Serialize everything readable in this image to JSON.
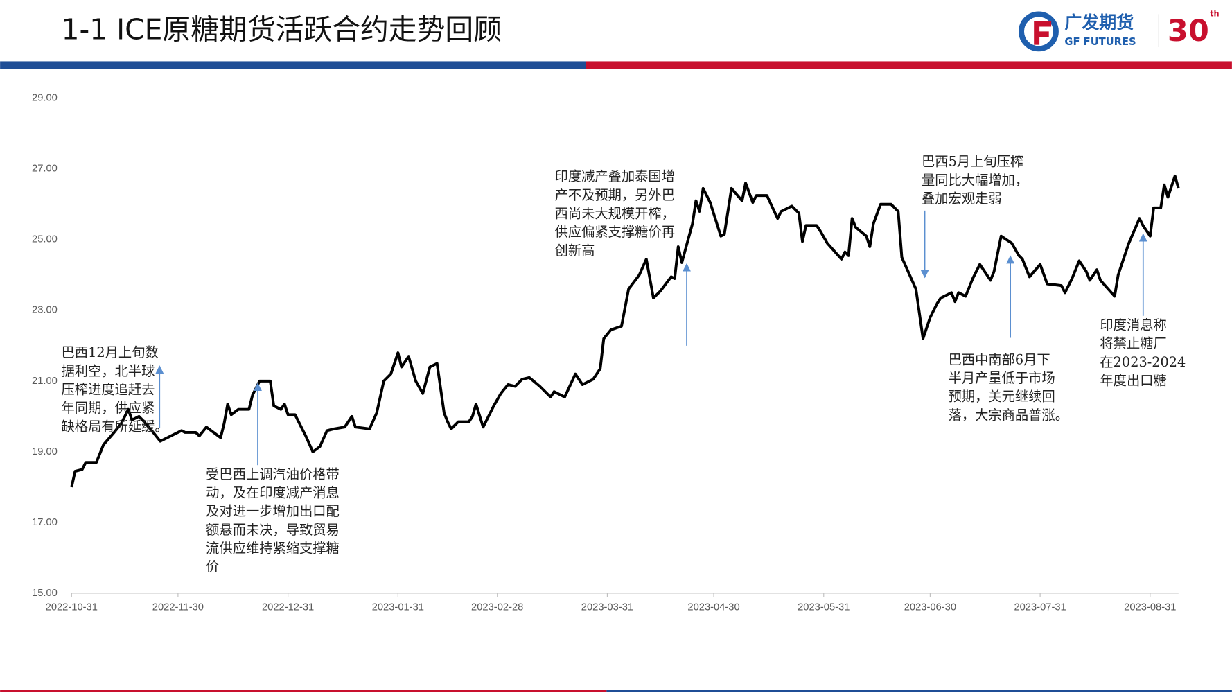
{
  "logo": {
    "name": "广发期货",
    "name_en": "GF FUTURES",
    "badge": "30",
    "badge_suffix": "th"
  },
  "chart_data": {
    "type": "line",
    "title": "1-1 ICE原糖期货活跃合约走势回顾",
    "color": "#000000",
    "x": [
      "2022-10-31",
      "2022-11-01",
      "2022-11-03",
      "2022-11-04",
      "2022-11-07",
      "2022-11-09",
      "2022-11-12",
      "2022-11-14",
      "2022-11-16",
      "2022-11-17",
      "2022-11-19",
      "2022-11-20",
      "2022-11-23",
      "2022-11-25",
      "2022-11-28",
      "2022-12-01",
      "2022-12-02",
      "2022-12-05",
      "2022-12-06",
      "2022-12-08",
      "2022-12-12",
      "2022-12-13",
      "2022-12-14",
      "2022-12-15",
      "2022-12-17",
      "2022-12-20",
      "2022-12-21",
      "2022-12-23",
      "2022-12-26",
      "2022-12-27",
      "2022-12-29",
      "2022-12-30",
      "2022-12-31",
      "2023-01-02",
      "2023-01-04",
      "2023-01-05",
      "2023-01-07",
      "2023-01-09",
      "2023-01-11",
      "2023-01-13",
      "2023-01-16",
      "2023-01-18",
      "2023-01-19",
      "2023-01-23",
      "2023-01-25",
      "2023-01-27",
      "2023-01-29",
      "2023-01-31",
      "2023-02-01",
      "2023-02-03",
      "2023-02-05",
      "2023-02-07",
      "2023-02-09",
      "2023-02-11",
      "2023-02-13",
      "2023-02-14",
      "2023-02-15",
      "2023-02-17",
      "2023-02-20",
      "2023-02-21",
      "2023-02-22",
      "2023-02-24",
      "2023-02-27",
      "2023-03-01",
      "2023-03-03",
      "2023-03-05",
      "2023-03-07",
      "2023-03-09",
      "2023-03-12",
      "2023-03-15",
      "2023-03-16",
      "2023-03-19",
      "2023-03-22",
      "2023-03-24",
      "2023-03-27",
      "2023-03-29",
      "2023-03-30",
      "2023-04-01",
      "2023-04-04",
      "2023-04-06",
      "2023-04-09",
      "2023-04-11",
      "2023-04-13",
      "2023-04-15",
      "2023-04-18",
      "2023-04-19",
      "2023-04-20",
      "2023-04-21",
      "2023-04-24",
      "2023-04-25",
      "2023-04-26",
      "2023-04-27",
      "2023-04-29",
      "2023-05-02",
      "2023-05-03",
      "2023-05-05",
      "2023-05-08",
      "2023-05-09",
      "2023-05-11",
      "2023-05-12",
      "2023-05-15",
      "2023-05-18",
      "2023-05-19",
      "2023-05-22",
      "2023-05-24",
      "2023-05-25",
      "2023-05-26",
      "2023-05-29",
      "2023-05-30",
      "2023-06-01",
      "2023-06-05",
      "2023-06-06",
      "2023-06-07",
      "2023-06-08",
      "2023-06-09",
      "2023-06-12",
      "2023-06-13",
      "2023-06-14",
      "2023-06-16",
      "2023-06-19",
      "2023-06-21",
      "2023-06-22",
      "2023-06-26",
      "2023-06-27",
      "2023-06-28",
      "2023-06-30",
      "2023-07-02",
      "2023-07-03",
      "2023-07-04",
      "2023-07-06",
      "2023-07-07",
      "2023-07-08",
      "2023-07-10",
      "2023-07-12",
      "2023-07-14",
      "2023-07-17",
      "2023-07-18",
      "2023-07-20",
      "2023-07-23",
      "2023-07-25",
      "2023-07-26",
      "2023-07-28",
      "2023-07-31",
      "2023-08-02",
      "2023-08-06",
      "2023-08-07",
      "2023-08-09",
      "2023-08-11",
      "2023-08-13",
      "2023-08-14",
      "2023-08-16",
      "2023-08-17",
      "2023-08-21",
      "2023-08-22",
      "2023-08-23",
      "2023-08-25",
      "2023-08-28",
      "2023-08-29",
      "2023-08-31",
      "2023-09-01",
      "2023-09-03",
      "2023-09-04",
      "2023-09-05",
      "2023-09-07",
      "2023-09-08"
    ],
    "values": [
      18.0,
      18.45,
      18.5,
      18.7,
      18.7,
      19.2,
      19.55,
      19.8,
      20.2,
      19.9,
      20.0,
      19.9,
      19.55,
      19.3,
      19.45,
      19.6,
      19.55,
      19.55,
      19.45,
      19.7,
      19.4,
      19.8,
      20.35,
      20.05,
      20.2,
      20.2,
      20.6,
      21.0,
      21.0,
      20.3,
      20.2,
      20.35,
      20.05,
      20.05,
      19.65,
      19.45,
      19.0,
      19.15,
      19.6,
      19.65,
      19.7,
      20.0,
      19.7,
      19.65,
      20.1,
      21.0,
      21.2,
      21.8,
      21.4,
      21.7,
      21.0,
      20.65,
      21.4,
      21.5,
      20.1,
      19.85,
      19.65,
      19.85,
      19.85,
      20.0,
      20.35,
      19.7,
      20.3,
      20.65,
      20.9,
      20.85,
      21.05,
      21.1,
      20.85,
      20.55,
      20.7,
      20.55,
      21.2,
      20.9,
      21.05,
      21.35,
      22.2,
      22.45,
      22.55,
      23.6,
      24.0,
      24.45,
      23.35,
      23.55,
      23.95,
      23.9,
      24.8,
      24.35,
      25.45,
      26.1,
      25.8,
      26.45,
      26.05,
      25.1,
      25.15,
      26.45,
      26.1,
      26.6,
      26.05,
      26.25,
      26.25,
      25.6,
      25.8,
      25.95,
      25.75,
      24.95,
      25.4,
      25.4,
      25.25,
      24.9,
      24.45,
      24.65,
      24.55,
      25.6,
      25.35,
      25.1,
      24.8,
      25.45,
      26.0,
      26.0,
      25.8,
      24.5,
      23.6,
      22.9,
      22.2,
      22.8,
      23.2,
      23.35,
      23.4,
      23.5,
      23.25,
      23.5,
      23.4,
      23.9,
      24.3,
      23.85,
      24.1,
      25.1,
      24.9,
      24.55,
      24.45,
      23.95,
      24.3,
      23.75,
      23.7,
      23.5,
      23.9,
      24.4,
      24.1,
      23.85,
      24.15,
      23.85,
      23.4,
      24.0,
      24.3,
      24.9,
      25.6,
      25.4,
      25.1,
      25.9,
      25.9,
      26.55,
      26.2,
      26.8,
      26.45
    ],
    "xlim": [
      "2022-10-31",
      "2023-09-08"
    ],
    "xticks": [
      "2022-10-31",
      "2022-11-30",
      "2022-12-31",
      "2023-01-31",
      "2023-02-28",
      "2023-03-31",
      "2023-04-30",
      "2023-05-31",
      "2023-06-30",
      "2023-07-31",
      "2023-08-31"
    ],
    "ylim": [
      15,
      29
    ],
    "yticks": [
      {
        "value": 15,
        "label": "15.00"
      },
      {
        "value": 17,
        "label": "17.00"
      },
      {
        "value": 19,
        "label": "19.00"
      },
      {
        "value": 21,
        "label": "21.00"
      },
      {
        "value": 23,
        "label": "23.00"
      },
      {
        "value": 25,
        "label": "25.00"
      },
      {
        "value": 27,
        "label": "27.00"
      },
      {
        "value": 29,
        "label": "29.00"
      }
    ],
    "grid": false,
    "annotations": [
      {
        "lines": [
          "巴西12月上旬数",
          "据利空，北半球",
          "压榨进度追赶去",
          "年同期，供应紧",
          "缺格局有所延缓。"
        ]
      },
      {
        "lines": [
          "受巴西上调汽油价格带",
          "动，及在印度减产消息",
          "及对进一步增加出口配",
          "额悬而未决，导致贸易",
          "流供应维持紧缩支撑糖",
          "价"
        ]
      },
      {
        "lines": [
          "印度减产叠加泰国增",
          "产不及预期，另外巴",
          "西尚未大规模开榨，",
          "供应偏紧支撑糖价再",
          "创新高"
        ]
      },
      {
        "lines": [
          "巴西5月上旬压榨",
          "量同比大幅增加，",
          "叠加宏观走弱"
        ]
      },
      {
        "lines": [
          "巴西中南部6月下",
          "半月产量低于市场",
          "预期，美元继续回",
          "落，大宗商品普涨。"
        ]
      },
      {
        "lines": [
          "印度消息称",
          "将禁止糖厂",
          "在2023-2024",
          "年度出口糖"
        ]
      }
    ]
  }
}
